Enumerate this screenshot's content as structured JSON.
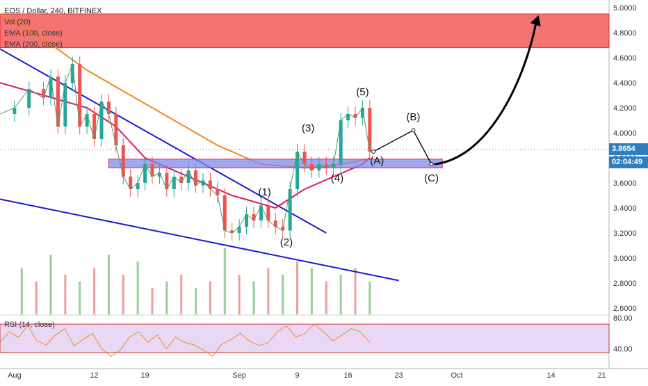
{
  "chart_data": [
    {
      "type": "candlestick",
      "title": "EOS / Dollar, 240, BITFINEX",
      "indicators": [
        "Vol (20)",
        "EMA (100, close)",
        "EMA (200, close)"
      ],
      "y_ticks": [
        "5.0000",
        "4.8000",
        "4.6000",
        "4.4000",
        "4.2000",
        "4.0000",
        "3.8000",
        "3.6000",
        "3.4000",
        "3.2000",
        "3.0000",
        "2.8000",
        "2.6000"
      ],
      "ylim": [
        2.55,
        5.05
      ],
      "x_ticks": [
        {
          "label": "Aug",
          "day": 0
        },
        {
          "label": "12",
          "day": 11
        },
        {
          "label": "19",
          "day": 18
        },
        {
          "label": "Sep",
          "day": 31
        },
        {
          "label": "9",
          "day": 39
        },
        {
          "label": "16",
          "day": 46
        },
        {
          "label": "23",
          "day": 53
        },
        {
          "label": "Oct",
          "day": 61
        },
        {
          "label": "14",
          "day": 74
        },
        {
          "label": "21",
          "day": 81
        }
      ],
      "xlim": [
        -2,
        82
      ],
      "last_price": "3.8654",
      "countdown": "02:04:49",
      "price_path": [
        [
          -2,
          4.15
        ],
        [
          0,
          4.2
        ],
        [
          2,
          4.35
        ],
        [
          4,
          4.28
        ],
        [
          5,
          4.45
        ],
        [
          6,
          4.05
        ],
        [
          7,
          4.4
        ],
        [
          8,
          4.55
        ],
        [
          9,
          4.05
        ],
        [
          10,
          4.15
        ],
        [
          11,
          3.95
        ],
        [
          12,
          4.25
        ],
        [
          13,
          4.15
        ],
        [
          14,
          3.9
        ],
        [
          15,
          3.65
        ],
        [
          16,
          3.55
        ],
        [
          17,
          3.6
        ],
        [
          18,
          3.75
        ],
        [
          19,
          3.65
        ],
        [
          20,
          3.68
        ],
        [
          21,
          3.55
        ],
        [
          22,
          3.65
        ],
        [
          23,
          3.6
        ],
        [
          24,
          3.7
        ],
        [
          25,
          3.58
        ],
        [
          26,
          3.62
        ],
        [
          27,
          3.55
        ],
        [
          28,
          3.5
        ],
        [
          29,
          3.22
        ],
        [
          30,
          3.2
        ],
        [
          31,
          3.25
        ],
        [
          32,
          3.35
        ],
        [
          33,
          3.3
        ],
        [
          34,
          3.42
        ],
        [
          35,
          3.3
        ],
        [
          36,
          3.25
        ],
        [
          37,
          3.22
        ],
        [
          38,
          3.55
        ],
        [
          39,
          3.85
        ],
        [
          40,
          3.75
        ],
        [
          41,
          3.7
        ],
        [
          42,
          3.75
        ],
        [
          43,
          3.72
        ],
        [
          44,
          3.75
        ],
        [
          45,
          4.1
        ],
        [
          46,
          4.15
        ],
        [
          47,
          4.12
        ],
        [
          48,
          4.2
        ],
        [
          49,
          3.85
        ]
      ],
      "ema100": [
        [
          -2,
          4.4
        ],
        [
          4,
          4.3
        ],
        [
          10,
          4.2
        ],
        [
          14,
          4.05
        ],
        [
          18,
          3.8
        ],
        [
          24,
          3.65
        ],
        [
          30,
          3.5
        ],
        [
          36,
          3.4
        ],
        [
          40,
          3.55
        ],
        [
          44,
          3.65
        ],
        [
          48,
          3.75
        ],
        [
          49,
          3.8
        ]
      ],
      "ema200": [
        [
          -2,
          4.95
        ],
        [
          4,
          4.75
        ],
        [
          10,
          4.5
        ],
        [
          16,
          4.3
        ],
        [
          22,
          4.1
        ],
        [
          28,
          3.9
        ],
        [
          34,
          3.75
        ],
        [
          40,
          3.72
        ],
        [
          44,
          3.74
        ],
        [
          49,
          3.79
        ]
      ],
      "volume": [
        [
          1,
          0.7
        ],
        [
          3,
          0.5
        ],
        [
          5,
          0.9
        ],
        [
          7,
          0.6
        ],
        [
          9,
          0.5
        ],
        [
          11,
          0.7
        ],
        [
          13,
          0.9
        ],
        [
          15,
          0.6
        ],
        [
          17,
          0.8
        ],
        [
          19,
          0.4
        ],
        [
          21,
          0.5
        ],
        [
          23,
          0.6
        ],
        [
          25,
          0.4
        ],
        [
          27,
          0.5
        ],
        [
          29,
          1.0
        ],
        [
          31,
          0.6
        ],
        [
          33,
          0.5
        ],
        [
          35,
          0.7
        ],
        [
          37,
          0.6
        ],
        [
          39,
          0.8
        ],
        [
          41,
          0.7
        ],
        [
          43,
          0.5
        ],
        [
          45,
          0.6
        ],
        [
          47,
          0.7
        ],
        [
          49,
          0.5
        ]
      ],
      "resistance_zone": [
        4.68,
        4.95
      ],
      "support_zone": [
        3.72,
        3.79
      ],
      "trendlines": [
        {
          "from": [
            -2,
            4.67
          ],
          "to": [
            43,
            3.2
          ]
        },
        {
          "from": [
            -2,
            3.47
          ],
          "to": [
            53,
            2.82
          ]
        }
      ],
      "wave_labels": [
        {
          "label": "(1)",
          "day": 34.5,
          "price": 3.5
        },
        {
          "label": "(2)",
          "day": 37.5,
          "price": 3.1
        },
        {
          "label": "(3)",
          "day": 40.5,
          "price": 4.01
        },
        {
          "label": "(4)",
          "day": 44.5,
          "price": 3.61
        },
        {
          "label": "(5)",
          "day": 48,
          "price": 4.3
        },
        {
          "label": "(A)",
          "day": 50,
          "price": 3.75
        },
        {
          "label": "(B)",
          "day": 55,
          "price": 4.1
        },
        {
          "label": "(C)",
          "day": 57.5,
          "price": 3.61
        }
      ],
      "projection": [
        [
          49.5,
          3.85
        ],
        [
          55,
          4.02
        ],
        [
          57.5,
          3.75
        ],
        [
          58,
          3.75
        ]
      ],
      "arrow": {
        "from": [
          58,
          3.75
        ],
        "to": [
          72,
          4.9
        ]
      }
    },
    {
      "type": "line",
      "title": "RSI (14, close)",
      "y_ticks": [
        "80.00",
        "40.00"
      ],
      "ylim": [
        25,
        82
      ],
      "band": [
        35,
        72
      ]
    }
  ]
}
